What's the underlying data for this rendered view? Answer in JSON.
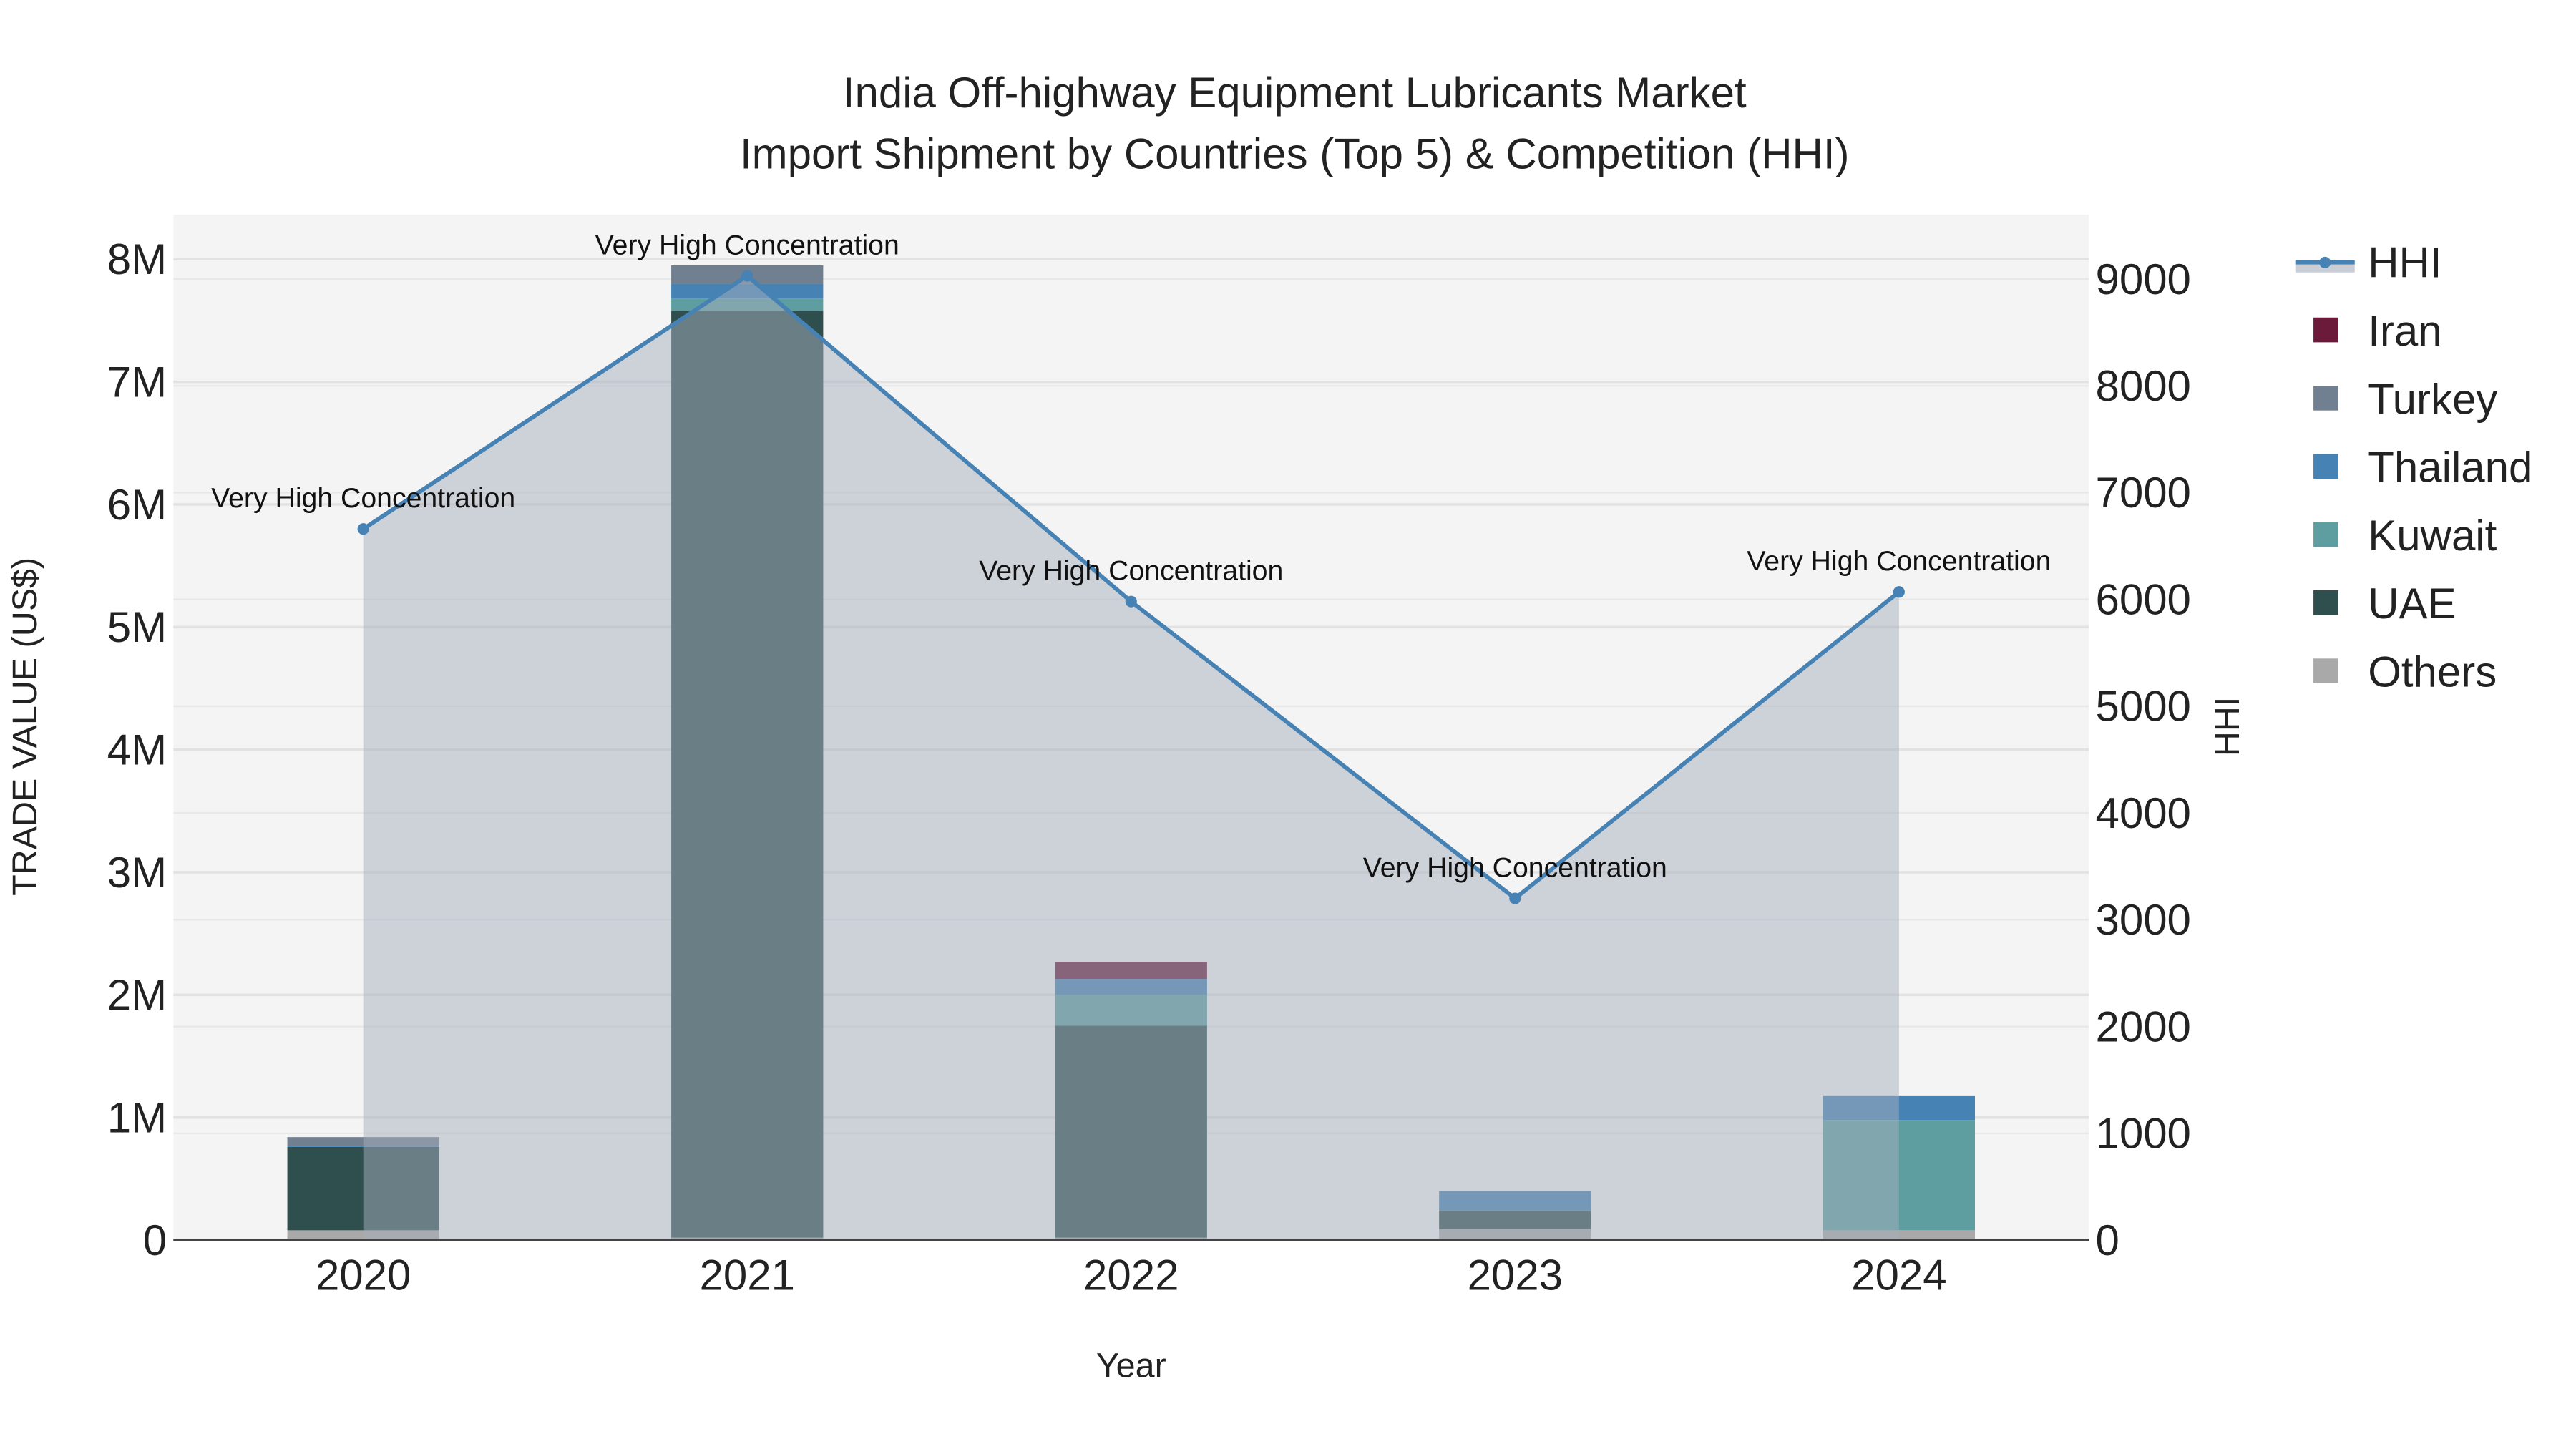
{
  "chart_data": {
    "type": "bar",
    "title_line1": "India Off-highway Equipment Lubricants Market",
    "title_line2": "Import Shipment by Countries (Top 5) & Competition (HHI)",
    "xlabel": "Year",
    "ylabel": "TRADE VALUE (US$)",
    "y2label": "HHI",
    "categories": [
      "2020",
      "2021",
      "2022",
      "2023",
      "2024"
    ],
    "ylim": [
      0,
      8400000
    ],
    "y2lim": [
      0,
      9600
    ],
    "yticks": [
      {
        "v": 0,
        "label": "0"
      },
      {
        "v": 1000000,
        "label": "1M"
      },
      {
        "v": 2000000,
        "label": "2M"
      },
      {
        "v": 3000000,
        "label": "3M"
      },
      {
        "v": 4000000,
        "label": "4M"
      },
      {
        "v": 5000000,
        "label": "5M"
      },
      {
        "v": 6000000,
        "label": "6M"
      },
      {
        "v": 7000000,
        "label": "7M"
      },
      {
        "v": 8000000,
        "label": "8M"
      }
    ],
    "y2ticks": [
      {
        "v": 0,
        "label": "0"
      },
      {
        "v": 1000,
        "label": "1000"
      },
      {
        "v": 2000,
        "label": "2000"
      },
      {
        "v": 3000,
        "label": "3000"
      },
      {
        "v": 4000,
        "label": "4000"
      },
      {
        "v": 5000,
        "label": "5000"
      },
      {
        "v": 6000,
        "label": "6000"
      },
      {
        "v": 7000,
        "label": "7000"
      },
      {
        "v": 8000,
        "label": "8000"
      },
      {
        "v": 9000,
        "label": "9000"
      }
    ],
    "series": [
      {
        "name": "Others",
        "color": "#A9A9A9",
        "values": [
          80000,
          20000,
          20000,
          90000,
          80000
        ]
      },
      {
        "name": "UAE",
        "color": "#2F4F4F",
        "values": [
          680000,
          7560000,
          1730000,
          150000,
          0
        ]
      },
      {
        "name": "Kuwait",
        "color": "#5F9EA0",
        "values": [
          0,
          100000,
          250000,
          0,
          900000
        ]
      },
      {
        "name": "Thailand",
        "color": "#4682B4",
        "values": [
          10000,
          120000,
          130000,
          160000,
          200000
        ]
      },
      {
        "name": "Turkey",
        "color": "#708090",
        "values": [
          70000,
          150000,
          0,
          0,
          0
        ]
      },
      {
        "name": "Iran",
        "color": "#6B1A3A",
        "values": [
          0,
          0,
          140000,
          0,
          0
        ]
      }
    ],
    "hhi": {
      "name": "HHI",
      "color": "#4682B4",
      "values": [
        6660,
        9030,
        5980,
        3200,
        6070
      ],
      "annotations": [
        "Very High Concentration",
        "Very High Concentration",
        "Very High Concentration",
        "Very High Concentration",
        "Very High Concentration"
      ]
    },
    "legend": [
      "HHI",
      "Iran",
      "Turkey",
      "Thailand",
      "Kuwait",
      "UAE",
      "Others"
    ],
    "legend_position": "top-right",
    "grid": true
  }
}
